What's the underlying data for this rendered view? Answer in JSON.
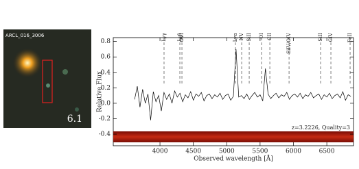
{
  "panel": {
    "label": "ARCL_016_3006",
    "id": "6.1"
  },
  "chart_data": {
    "type": "line",
    "ylabel": "Relative Flux",
    "xlabel": "Observed wavelength [Å]",
    "annotation": "z=3.2226, Quality=3",
    "x": [
      3620,
      3660,
      3700,
      3740,
      3780,
      3820,
      3860,
      3900,
      3940,
      3980,
      4020,
      4060,
      4100,
      4140,
      4180,
      4220,
      4260,
      4300,
      4340,
      4380,
      4420,
      4460,
      4500,
      4540,
      4580,
      4620,
      4660,
      4700,
      4740,
      4780,
      4820,
      4860,
      4900,
      4940,
      4980,
      5020,
      5060,
      5100,
      5140,
      5180,
      5220,
      5260,
      5300,
      5340,
      5380,
      5420,
      5460,
      5500,
      5540,
      5580,
      5620,
      5660,
      5700,
      5740,
      5780,
      5820,
      5860,
      5900,
      5940,
      5980,
      6020,
      6060,
      6100,
      6140,
      6180,
      6220,
      6260,
      6300,
      6340,
      6380,
      6420,
      6460,
      6500,
      6540,
      6580,
      6620,
      6660,
      6700,
      6740,
      6780,
      6820,
      6860
    ],
    "values": [
      0.05,
      0.22,
      -0.05,
      0.18,
      0.0,
      0.12,
      -0.22,
      0.15,
      0.02,
      0.1,
      -0.1,
      0.14,
      0.05,
      0.12,
      0.0,
      0.16,
      0.08,
      0.13,
      0.02,
      0.11,
      0.07,
      0.15,
      0.04,
      0.12,
      0.09,
      0.14,
      0.03,
      0.1,
      0.12,
      0.06,
      0.11,
      0.08,
      0.13,
      0.05,
      0.1,
      0.12,
      0.04,
      0.09,
      0.7,
      0.08,
      0.1,
      0.06,
      0.12,
      0.05,
      0.1,
      0.14,
      0.08,
      0.11,
      0.03,
      0.45,
      0.12,
      0.06,
      0.1,
      0.13,
      0.07,
      0.11,
      0.09,
      0.14,
      0.05,
      0.1,
      0.12,
      0.08,
      0.13,
      0.06,
      0.11,
      0.09,
      0.14,
      0.07,
      0.1,
      0.12,
      0.05,
      0.11,
      0.08,
      0.13,
      0.06,
      0.1,
      0.12,
      0.07,
      0.15,
      0.04,
      0.11,
      0.09
    ],
    "color": "#000000",
    "lines": [
      {
        "label": "Lyγ",
        "wavelength": 4061
      },
      {
        "label": "Lyβ",
        "wavelength": 4298
      },
      {
        "label": "OVI",
        "wavelength": 4329
      },
      {
        "label": "Lyα",
        "wavelength": 5131
      },
      {
        "label": "NV",
        "wavelength": 5224
      },
      {
        "label": "SiII",
        "wavelength": 5337
      },
      {
        "label": "OI",
        "wavelength": 5522
      },
      {
        "label": "CII",
        "wavelength": 5646
      },
      {
        "label": "SiIV/OIV",
        "wavelength": 5934
      },
      {
        "label": "SiII",
        "wavelength": 6407
      },
      {
        "label": "CIV",
        "wavelength": 6561
      },
      {
        "label": "FeII",
        "wavelength": 6849
      }
    ],
    "xlim": [
      3300,
      6900
    ],
    "xticks": [
      4000,
      4500,
      5000,
      5500,
      6000,
      6500
    ],
    "ylim": [
      -0.55,
      0.85
    ],
    "yticks": [
      0.8,
      0.6,
      0.4,
      0.2,
      {
        "value": 0,
        "label": "0.0"
      },
      -0.2,
      -0.4
    ]
  }
}
